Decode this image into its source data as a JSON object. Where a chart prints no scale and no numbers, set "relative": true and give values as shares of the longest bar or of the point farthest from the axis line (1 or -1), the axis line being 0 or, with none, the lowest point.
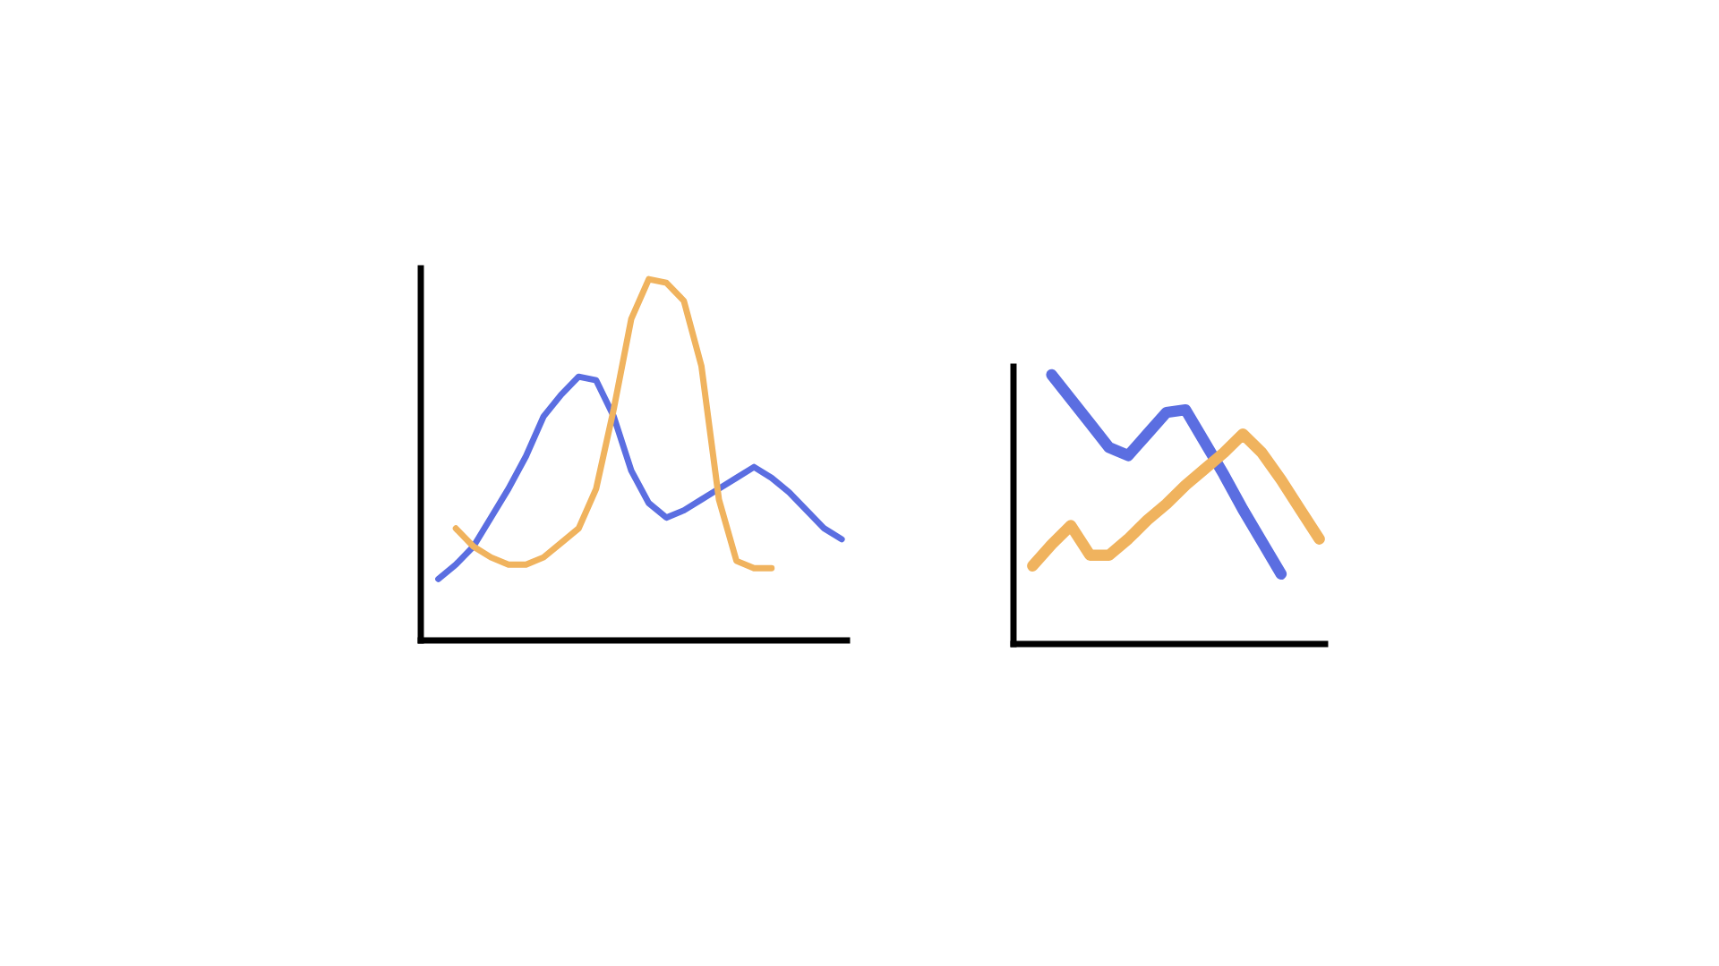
{
  "chart_data": [
    {
      "type": "line",
      "relative": true,
      "categories": [
        null,
        null,
        null,
        null,
        null,
        null,
        null,
        null,
        null,
        null,
        null,
        null,
        null,
        null,
        null,
        null,
        null,
        null,
        null,
        null,
        null,
        null,
        null,
        null
      ],
      "series": [
        {
          "color": "#5b6ee1",
          "values": [
            0.17,
            0.21,
            0.26,
            0.34,
            0.42,
            0.51,
            0.62,
            0.68,
            0.73,
            0.72,
            0.62,
            0.47,
            0.38,
            0.34,
            0.36,
            0.39,
            0.42,
            0.45,
            0.48,
            0.45,
            0.41,
            0.36,
            0.31,
            0.28
          ]
        },
        {
          "color": "#f0b35e",
          "values": [
            null,
            0.31,
            0.26,
            0.23,
            0.21,
            0.21,
            0.23,
            0.27,
            0.31,
            0.42,
            0.64,
            0.89,
            1,
            0.99,
            0.94,
            0.76,
            0.39,
            0.22,
            0.2,
            0.2,
            null,
            null,
            null,
            null
          ]
        }
      ],
      "grid": false,
      "legend": false
    },
    {
      "type": "line",
      "relative": true,
      "categories": [
        null,
        null,
        null,
        null,
        null,
        null,
        null,
        null,
        null,
        null,
        null,
        null,
        null,
        null,
        null,
        null
      ],
      "series": [
        {
          "color": "#5b6ee1",
          "values": [
            null,
            1,
            0.91,
            0.82,
            0.73,
            0.7,
            0.78,
            0.86,
            0.87,
            0.75,
            0.63,
            0.5,
            0.38,
            0.26,
            null,
            null
          ]
        },
        {
          "color": "#f0b35e",
          "values": [
            0.29,
            0.37,
            0.44,
            0.33,
            0.33,
            0.39,
            0.46,
            0.52,
            0.59,
            0.65,
            0.71,
            0.78,
            0.71,
            0.61,
            0.5,
            0.39
          ]
        }
      ],
      "grid": false,
      "legend": false
    }
  ]
}
